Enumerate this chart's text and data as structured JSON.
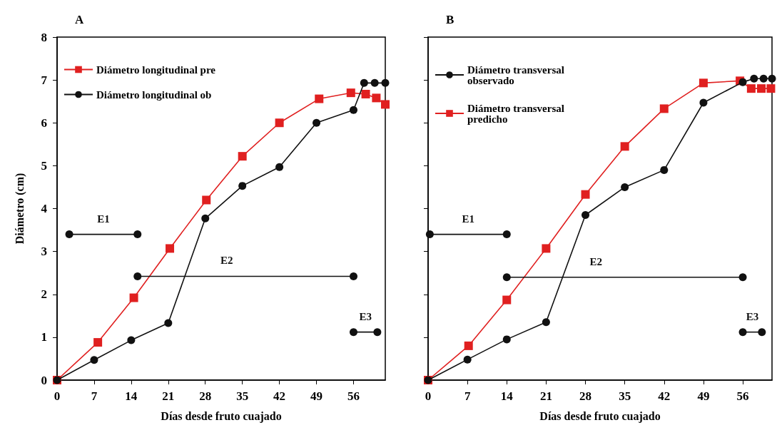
{
  "chart_data": [
    {
      "type": "line",
      "title": "A",
      "xlabel": "Días desde fruto cuajado",
      "ylabel": "Diámetro (cm)",
      "xlim": [
        0,
        62
      ],
      "xticks": [
        0,
        7,
        14,
        21,
        28,
        35,
        42,
        49,
        56
      ],
      "ylim": [
        0,
        8
      ],
      "yticks": [
        0,
        1,
        2,
        3,
        4,
        5,
        6,
        7,
        8
      ],
      "grid": false,
      "legend": "top left",
      "line_style": "solid",
      "series": [
        {
          "name": "Diámetro longitudinal pre",
          "color": "#e02020",
          "marker": "square",
          "x": [
            0,
            7.7,
            14.5,
            21.3,
            28.2,
            35,
            42,
            49.5,
            55.5,
            58.3,
            60.3,
            62
          ],
          "values": [
            0,
            0.88,
            1.92,
            3.07,
            4.2,
            5.22,
            6.0,
            6.56,
            6.7,
            6.67,
            6.58,
            6.43
          ]
        },
        {
          "name": "Diámetro longitudinal ob",
          "color": "#111111",
          "marker": "circle",
          "x": [
            0,
            7,
            14,
            21,
            28,
            35,
            42,
            49,
            56,
            58,
            60,
            62
          ],
          "values": [
            0,
            0.47,
            0.93,
            1.33,
            3.77,
            4.53,
            4.97,
            6.0,
            6.3,
            6.93,
            6.93,
            6.93
          ]
        },
        {
          "name": "E1",
          "color": "#111111",
          "marker": "circle",
          "x": [
            2.3,
            15.2
          ],
          "values": [
            3.4,
            3.4
          ]
        },
        {
          "name": "E2",
          "color": "#111111",
          "marker": "circle",
          "x": [
            15.2,
            56
          ],
          "values": [
            2.42,
            2.42
          ]
        },
        {
          "name": "E3",
          "color": "#111111",
          "marker": "circle",
          "x": [
            56,
            60.5
          ],
          "values": [
            1.12,
            1.12
          ]
        }
      ]
    },
    {
      "type": "line",
      "title": "B",
      "xlabel": "Días desde fruto cuajado",
      "xlim": [
        0,
        61.2
      ],
      "xticks": [
        0,
        7,
        14,
        21,
        28,
        35,
        42,
        49,
        56
      ],
      "ylim": [
        0,
        8
      ],
      "yticks": [
        0,
        1,
        2,
        3,
        4,
        5,
        6,
        7,
        8
      ],
      "tick_labels": "x",
      "grid": false,
      "legend": "top left",
      "line_style": "solid",
      "series": [
        {
          "name": "Diámetro transversal observado",
          "color": "#111111",
          "marker": "circle",
          "x": [
            0,
            7,
            14,
            21,
            28,
            35,
            42,
            49,
            56,
            58,
            59.7,
            61.2
          ],
          "values": [
            0,
            0.48,
            0.95,
            1.35,
            3.85,
            4.5,
            4.9,
            6.47,
            6.95,
            7.03,
            7.03,
            7.03
          ]
        },
        {
          "name": "Diámetro transversal predicho",
          "color": "#e02020",
          "marker": "square",
          "x": [
            0,
            7.2,
            14,
            21,
            28,
            35,
            42,
            49,
            55.5,
            57.5,
            59.3,
            61
          ],
          "values": [
            0,
            0.8,
            1.87,
            3.07,
            4.33,
            5.45,
            6.33,
            6.93,
            6.98,
            6.8,
            6.8,
            6.8
          ]
        },
        {
          "name": "E1",
          "color": "#111111",
          "marker": "circle",
          "x": [
            0.3,
            14
          ],
          "values": [
            3.4,
            3.4
          ]
        },
        {
          "name": "E2",
          "color": "#111111",
          "marker": "circle",
          "x": [
            14,
            56
          ],
          "values": [
            2.4,
            2.4
          ]
        },
        {
          "name": "E3",
          "color": "#111111",
          "marker": "circle",
          "x": [
            56,
            59.4
          ],
          "values": [
            1.12,
            1.12
          ]
        }
      ]
    }
  ]
}
